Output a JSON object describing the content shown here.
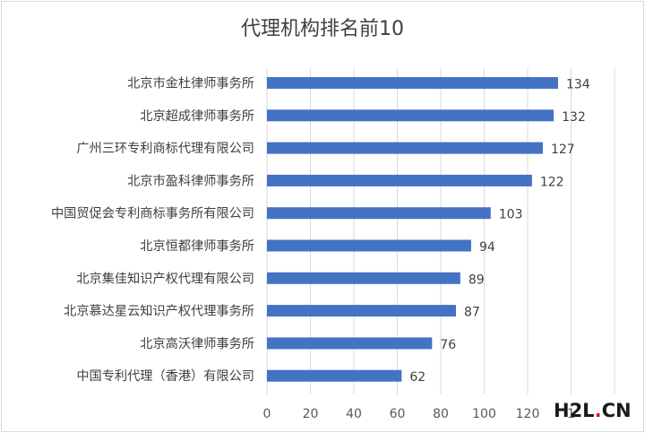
{
  "chart_data": {
    "type": "bar",
    "orientation": "horizontal",
    "title": "代理机构排名前10",
    "categories": [
      "北京市金杜律师事务所",
      "北京超成律师事务所",
      "广州三环专利商标代理有限公司",
      "北京市盈科律师事务所",
      "中国贸促会专利商标事务所有限公司",
      "北京恒都律师事务所",
      "北京集佳知识产权代理有限公司",
      "北京慕达星云知识产权代理事务所",
      "北京高沃律师事务所",
      "中国专利代理（香港）有限公司"
    ],
    "values": [
      134,
      132,
      127,
      122,
      103,
      94,
      89,
      87,
      76,
      62
    ],
    "xlim": [
      0,
      160
    ],
    "xticks": [
      "0",
      "20",
      "40",
      "60",
      "80",
      "100",
      "120",
      "1",
      "",
      ""
    ],
    "grid": "vertical",
    "bar_color": "#4472c4",
    "data_labels": true
  },
  "watermark": {
    "part1": "H2L",
    "part2": ".",
    "part3": "CN"
  }
}
